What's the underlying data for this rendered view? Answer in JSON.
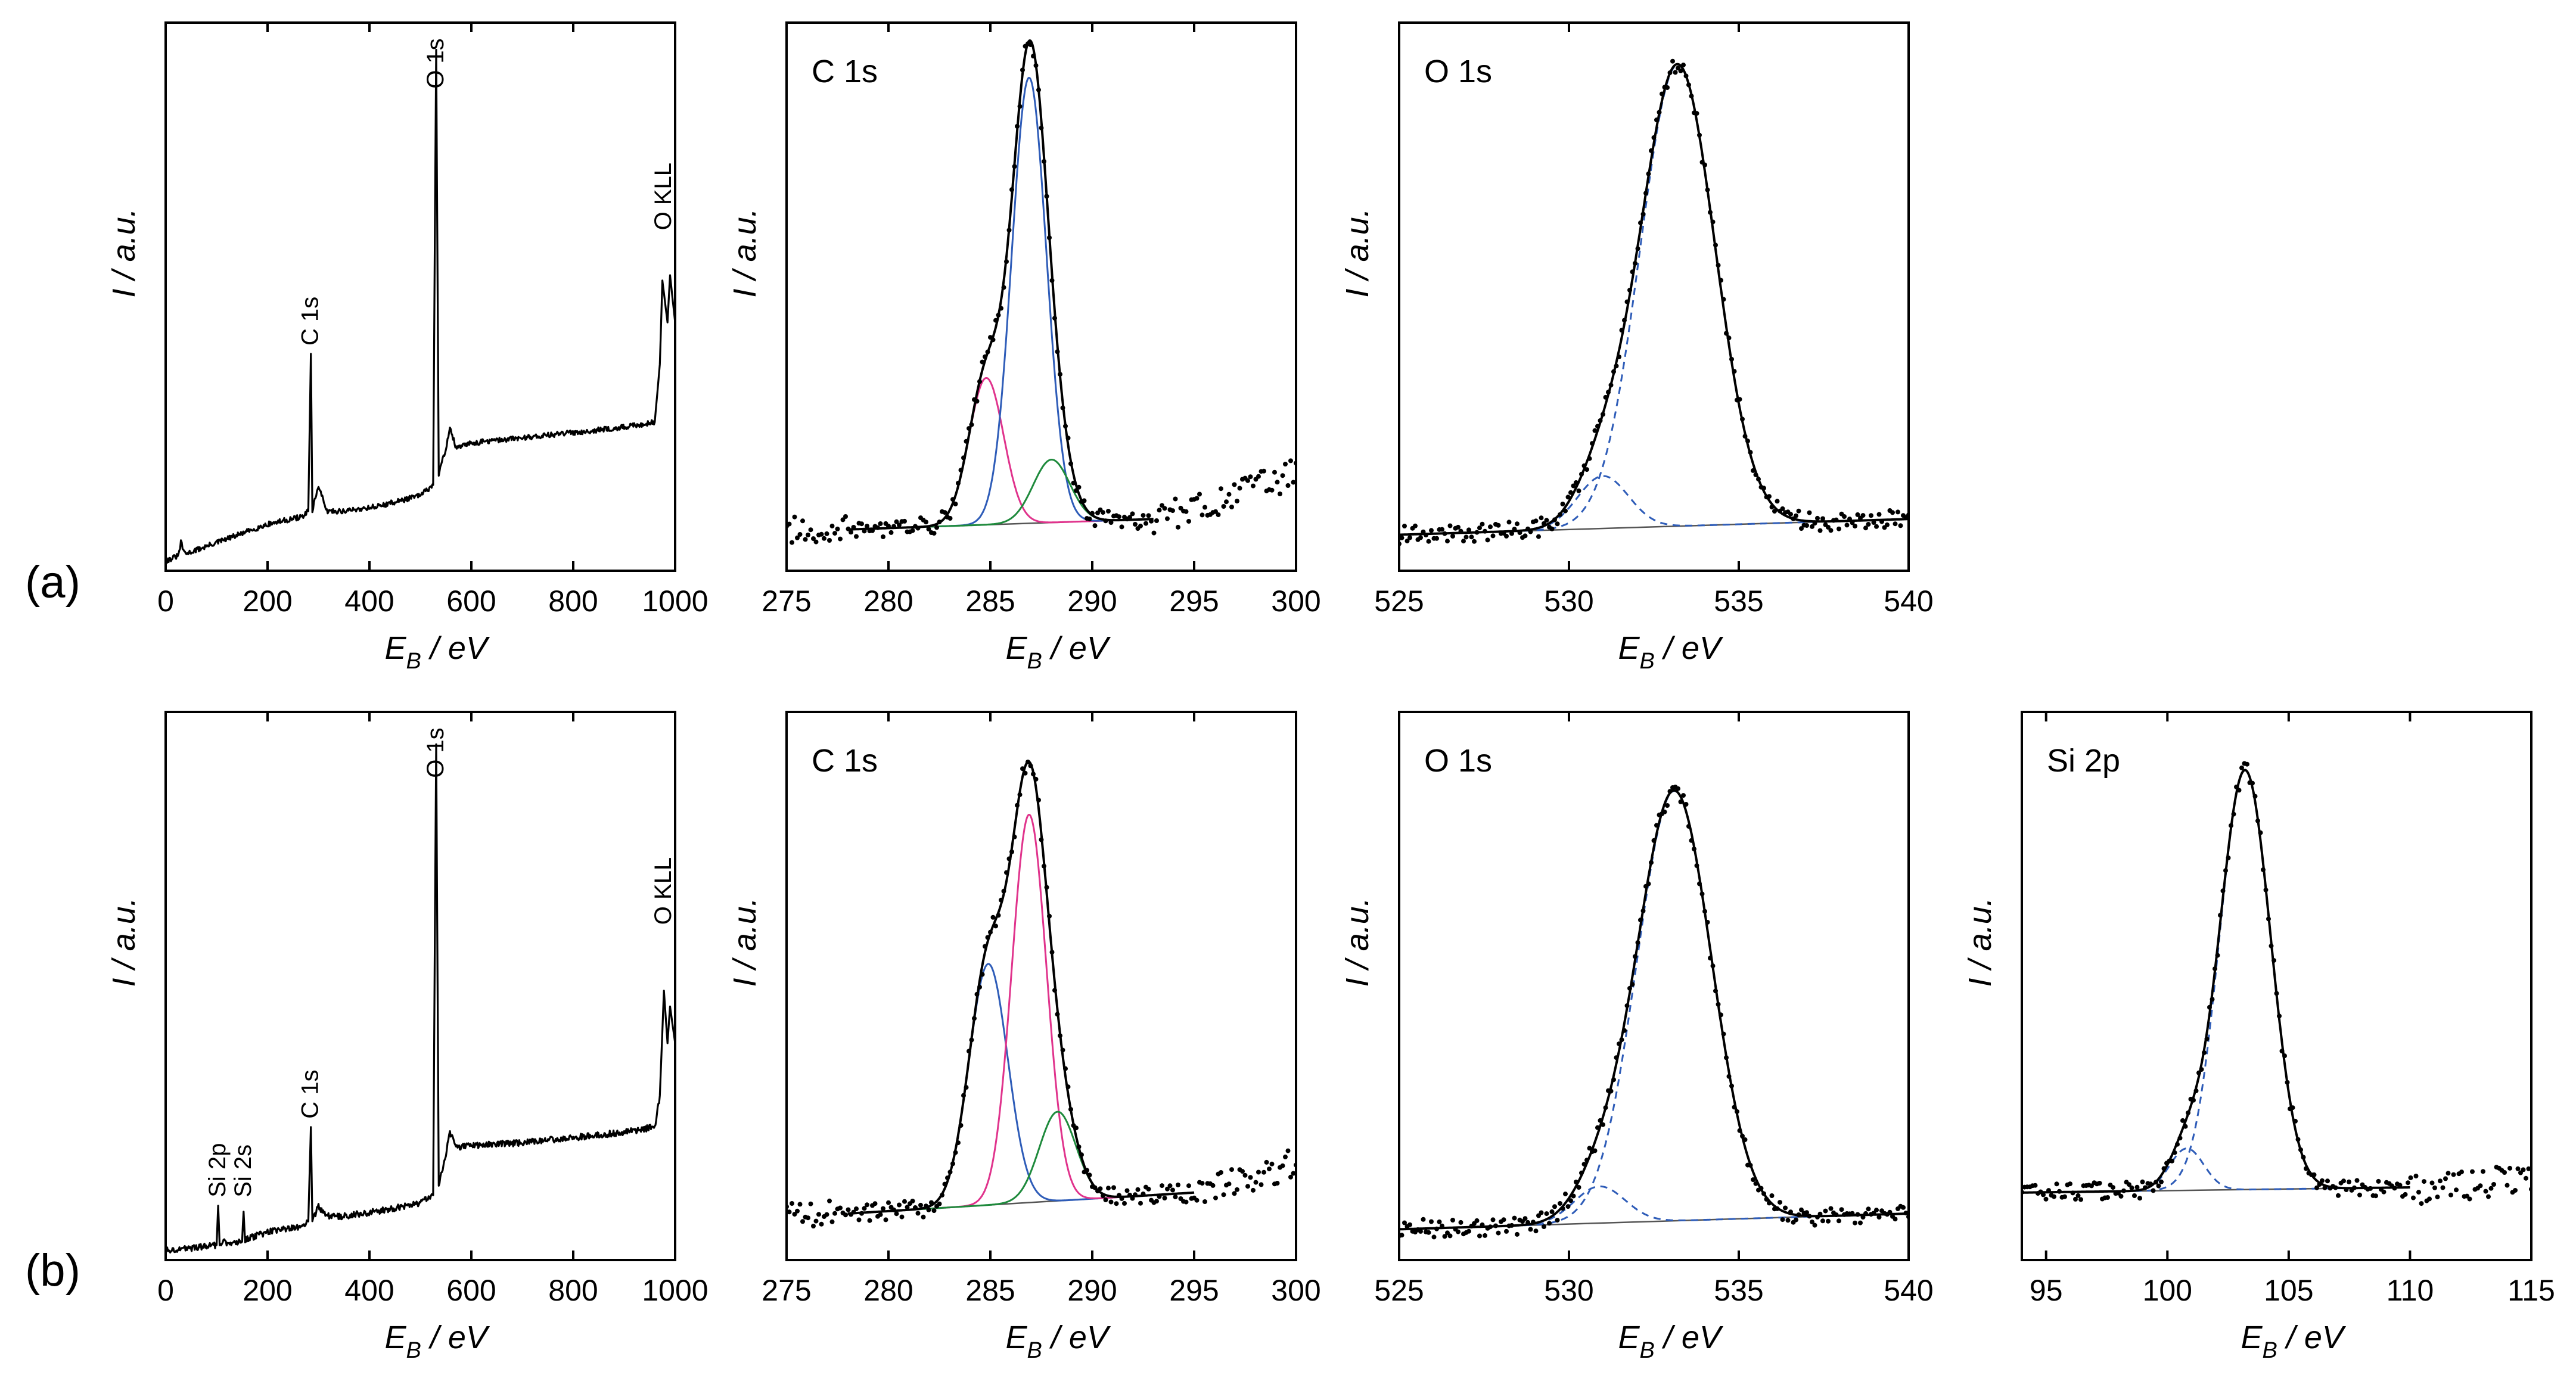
{
  "figure": {
    "rows": [
      {
        "label": "(a)"
      },
      {
        "label": "(b)"
      }
    ]
  },
  "chart_data": [
    {
      "id": "a-survey",
      "row": 0,
      "type": "line",
      "title": "",
      "xlabel": "E",
      "xlabel_sub": "B",
      "xlabel_unit": " / eV",
      "ylabel": "I / a.u.",
      "xlim": [
        0,
        1000
      ],
      "ylim": [
        0,
        100
      ],
      "xticks": [
        0,
        200,
        400,
        600,
        800,
        1000
      ],
      "annotations": [
        {
          "text": "C 1s",
          "x": 285,
          "y": 40
        },
        {
          "text": "O 1s",
          "x": 531,
          "y": 89
        },
        {
          "text": "O KLL",
          "x": 978,
          "y": 62
        }
      ],
      "curves": [
        {
          "name": "spectrum",
          "color": "#000000",
          "points": [
            [
              0,
              0.5
            ],
            [
              25,
              1.5
            ],
            [
              30,
              4
            ],
            [
              38,
              1.8
            ],
            [
              100,
              4
            ],
            [
              200,
              7.5
            ],
            [
              270,
              9
            ],
            [
              280,
              10
            ],
            [
              285,
              40
            ],
            [
              288,
              10
            ],
            [
              300,
              15
            ],
            [
              315,
              10
            ],
            [
              350,
              10
            ],
            [
              420,
              11
            ],
            [
              500,
              13
            ],
            [
              525,
              15
            ],
            [
              531,
              98
            ],
            [
              536,
              17
            ],
            [
              550,
              22
            ],
            [
              558,
              26
            ],
            [
              570,
              22
            ],
            [
              600,
              23
            ],
            [
              700,
              24
            ],
            [
              800,
              25
            ],
            [
              900,
              26
            ],
            [
              960,
              27
            ],
            [
              970,
              38
            ],
            [
              975,
              54
            ],
            [
              985,
              46
            ],
            [
              990,
              55
            ],
            [
              1000,
              46
            ]
          ]
        }
      ],
      "noise": {
        "curve": 0,
        "amp": 0.5
      }
    },
    {
      "id": "a-c1s",
      "row": 0,
      "type": "line",
      "title": "C 1s",
      "xlabel": "E",
      "xlabel_sub": "B",
      "xlabel_unit": " / eV",
      "ylabel": "I / a.u.",
      "xlim": [
        275,
        300
      ],
      "ylim": [
        0,
        100
      ],
      "xticks": [
        275,
        280,
        285,
        290,
        295,
        300
      ],
      "baseline": {
        "x0": 278,
        "x1": 293,
        "y0": 6.5,
        "y1": 8.5,
        "color": "#555555"
      },
      "components": [
        {
          "name": "C component 1",
          "center": 284.8,
          "amp": 28,
          "width": 0.85,
          "color": "#E0338C"
        },
        {
          "name": "C component 2",
          "center": 286.9,
          "amp": 85,
          "width": 0.85,
          "color": "#2E5CB8"
        },
        {
          "name": "C component 3",
          "center": 288.0,
          "amp": 12,
          "width": 0.9,
          "color": "#1E8A3C"
        }
      ],
      "envelope": {
        "x0": 278,
        "x1": 293,
        "color": "#000000"
      },
      "experimental": {
        "x0": 275,
        "x1": 300,
        "tail_start": 293,
        "tail_level_start": 8,
        "tail_level_end": 17,
        "color": "#000000"
      }
    },
    {
      "id": "a-o1s",
      "row": 0,
      "type": "line",
      "title": "O 1s",
      "xlabel": "E",
      "xlabel_sub": "B",
      "xlabel_unit": " / eV",
      "ylabel": "I / a.u.",
      "xlim": [
        525,
        540
      ],
      "ylim": [
        0,
        100
      ],
      "xticks": [
        525,
        530,
        535,
        540
      ],
      "baseline": {
        "x0": 525,
        "x1": 540,
        "y0": 5.5,
        "y1": 8.5,
        "color": "#555555"
      },
      "components": [
        {
          "name": "O component 1",
          "center": 531.0,
          "amp": 10,
          "width": 0.75,
          "color": "#2E5CB8",
          "dashed": true
        },
        {
          "name": "O component 2",
          "center": 533.2,
          "amp": 88,
          "width": 1.1,
          "color": "#2E5CB8",
          "dashed": true
        }
      ],
      "envelope": {
        "x0": 525,
        "x1": 540,
        "color": "#000000"
      },
      "experimental": {
        "x0": 525,
        "x1": 540,
        "color": "#000000"
      }
    },
    {
      "id": "b-survey",
      "row": 1,
      "type": "line",
      "title": "",
      "xlabel": "E",
      "xlabel_sub": "B",
      "xlabel_unit": " / eV",
      "ylabel": "I / a.u.",
      "xlim": [
        0,
        1000
      ],
      "ylim": [
        0,
        100
      ],
      "xticks": [
        0,
        200,
        400,
        600,
        800,
        1000
      ],
      "annotations": [
        {
          "text": "Si 2p",
          "x": 103,
          "y": 9
        },
        {
          "text": "Si 2s",
          "x": 153,
          "y": 9
        },
        {
          "text": "C 1s",
          "x": 285,
          "y": 24
        },
        {
          "text": "O 1s",
          "x": 531,
          "y": 89
        },
        {
          "text": "O KLL",
          "x": 978,
          "y": 61
        }
      ],
      "curves": [
        {
          "name": "spectrum",
          "color": "#000000",
          "points": [
            [
              0,
              0.5
            ],
            [
              60,
              1
            ],
            [
              100,
              1.5
            ],
            [
              103,
              9
            ],
            [
              106,
              2
            ],
            [
              150,
              2
            ],
            [
              153,
              8
            ],
            [
              156,
              2.5
            ],
            [
              200,
              4
            ],
            [
              270,
              5
            ],
            [
              280,
              6
            ],
            [
              285,
              24
            ],
            [
              288,
              6
            ],
            [
              300,
              9
            ],
            [
              315,
              7
            ],
            [
              350,
              7
            ],
            [
              420,
              8
            ],
            [
              500,
              9.5
            ],
            [
              525,
              11
            ],
            [
              531,
              97
            ],
            [
              536,
              13
            ],
            [
              550,
              19
            ],
            [
              558,
              23
            ],
            [
              570,
              20
            ],
            [
              600,
              20.5
            ],
            [
              700,
              21
            ],
            [
              800,
              22
            ],
            [
              900,
              23
            ],
            [
              960,
              24
            ],
            [
              970,
              30
            ],
            [
              978,
              50
            ],
            [
              985,
              40
            ],
            [
              990,
              47
            ],
            [
              1000,
              40
            ]
          ]
        }
      ],
      "noise": {
        "curve": 0,
        "amp": 0.6
      }
    },
    {
      "id": "b-c1s",
      "row": 1,
      "type": "line",
      "title": "C 1s",
      "xlabel": "E",
      "xlabel_sub": "B",
      "xlabel_unit": " / eV",
      "ylabel": "I / a.u.",
      "xlim": [
        275,
        300
      ],
      "ylim": [
        0,
        100
      ],
      "xticks": [
        275,
        280,
        285,
        290,
        295,
        300
      ],
      "baseline": {
        "x0": 278,
        "x1": 295,
        "y0": 7.5,
        "y1": 11.5,
        "color": "#555555"
      },
      "components": [
        {
          "name": "C component 1",
          "center": 284.9,
          "amp": 46,
          "width": 0.95,
          "color": "#2E5CB8"
        },
        {
          "name": "C component 2",
          "center": 286.9,
          "amp": 74,
          "width": 0.85,
          "color": "#E0338C"
        },
        {
          "name": "C component 3",
          "center": 288.3,
          "amp": 17,
          "width": 0.9,
          "color": "#1E8A3C"
        }
      ],
      "envelope": {
        "x0": 278,
        "x1": 295,
        "color": "#000000"
      },
      "experimental": {
        "x0": 275,
        "x1": 300,
        "tail_start": 295,
        "tail_level_start": 11,
        "tail_level_end": 17,
        "color": "#000000"
      }
    },
    {
      "id": "b-o1s",
      "row": 1,
      "type": "line",
      "title": "O 1s",
      "xlabel": "E",
      "xlabel_sub": "B",
      "xlabel_unit": " / eV",
      "ylabel": "I / a.u.",
      "xlim": [
        525,
        540
      ],
      "ylim": [
        0,
        100
      ],
      "xticks": [
        525,
        530,
        535,
        540
      ],
      "baseline": {
        "x0": 525,
        "x1": 540,
        "y0": 4.5,
        "y1": 7.5,
        "color": "#555555"
      },
      "components": [
        {
          "name": "O component 1",
          "center": 530.9,
          "amp": 7,
          "width": 0.75,
          "color": "#2E5CB8",
          "dashed": true
        },
        {
          "name": "O component 2",
          "center": 533.1,
          "amp": 82,
          "width": 1.1,
          "color": "#2E5CB8",
          "dashed": true
        }
      ],
      "envelope": {
        "x0": 525,
        "x1": 540,
        "color": "#000000"
      },
      "experimental": {
        "x0": 525,
        "x1": 540,
        "color": "#000000"
      }
    },
    {
      "id": "b-si2p",
      "row": 1,
      "type": "line",
      "title": "Si 2p",
      "xlabel": "E",
      "xlabel_sub": "B",
      "xlabel_unit": " / eV",
      "ylabel": "I / a.u.",
      "xlim": [
        94,
        115
      ],
      "ylim": [
        0,
        100
      ],
      "xticks": [
        95,
        100,
        105,
        110,
        115
      ],
      "baseline": {
        "x0": 94,
        "x1": 110,
        "y0": 11.5,
        "y1": 12.5,
        "color": "#555555"
      },
      "components": [
        {
          "name": "Si component 1",
          "center": 100.8,
          "amp": 8,
          "width": 0.7,
          "color": "#2E5CB8",
          "dashed": true
        },
        {
          "name": "Si component 2",
          "center": 103.2,
          "amp": 80,
          "width": 1.05,
          "color": "#2E5CB8",
          "dashed": true
        }
      ],
      "envelope": {
        "x0": 94,
        "x1": 110,
        "color": "#000000"
      },
      "experimental": {
        "x0": 94,
        "x1": 115,
        "tail_start": 110,
        "tail_level_start": 12,
        "tail_level_end": 14,
        "color": "#000000"
      }
    }
  ]
}
